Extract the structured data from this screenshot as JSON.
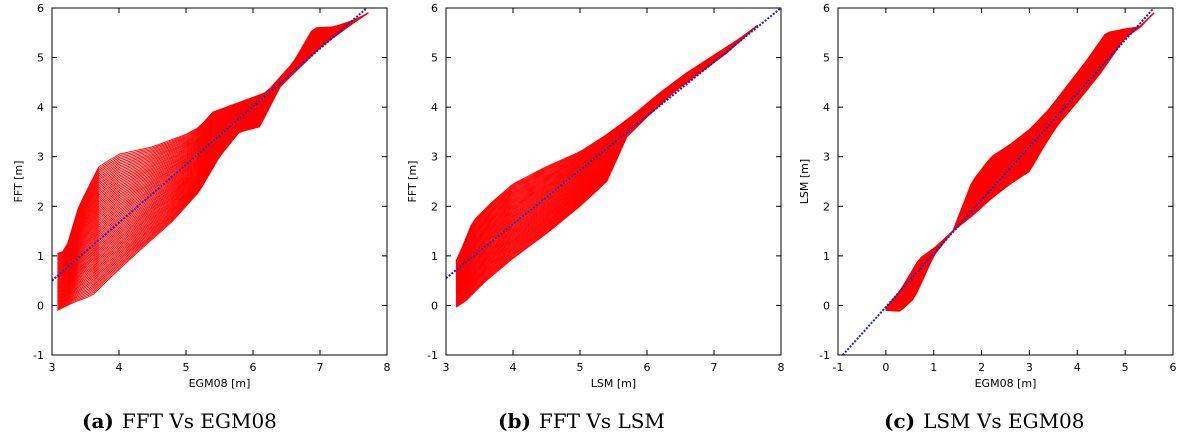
{
  "chart_data": [
    {
      "type": "scatter",
      "caption_letter": "(a)",
      "caption": "FFT Vs EGM08",
      "xlabel": "EGM08 [m]",
      "ylabel": "FFT [m]",
      "xlim": [
        3,
        8
      ],
      "ylim": [
        -1,
        6
      ],
      "xticks": [
        3,
        4,
        5,
        6,
        7,
        8
      ],
      "yticks": [
        -1,
        0,
        1,
        2,
        3,
        4,
        5,
        6
      ],
      "grid": false,
      "colors": {
        "scatter": "#ff0000",
        "fit": "#1f1fbf"
      },
      "lower_envelope": [
        [
          3.08,
          -0.1
        ],
        [
          3.3,
          0.05
        ],
        [
          3.6,
          0.2
        ],
        [
          3.9,
          0.6
        ],
        [
          4.3,
          1.1
        ],
        [
          4.8,
          1.7
        ],
        [
          5.2,
          2.3
        ],
        [
          5.5,
          3.0
        ],
        [
          5.8,
          3.5
        ],
        [
          6.1,
          3.6
        ],
        [
          6.4,
          4.4
        ],
        [
          7.0,
          5.2
        ],
        [
          7.5,
          5.7
        ],
        [
          7.72,
          5.9
        ]
      ],
      "upper_envelope": [
        [
          3.08,
          1.05
        ],
        [
          3.2,
          1.1
        ],
        [
          3.4,
          2.0
        ],
        [
          3.7,
          2.8
        ],
        [
          4.0,
          3.05
        ],
        [
          4.5,
          3.2
        ],
        [
          5.0,
          3.45
        ],
        [
          5.2,
          3.6
        ],
        [
          5.4,
          3.9
        ],
        [
          5.8,
          4.1
        ],
        [
          6.2,
          4.3
        ],
        [
          6.6,
          4.9
        ],
        [
          6.9,
          5.6
        ],
        [
          7.2,
          5.62
        ],
        [
          7.5,
          5.75
        ],
        [
          7.72,
          5.9
        ]
      ],
      "fit_line": {
        "x": [
          3.0,
          7.7
        ],
        "y": [
          0.5,
          6.0
        ]
      }
    },
    {
      "type": "scatter",
      "caption_letter": "(b)",
      "caption": "FFT Vs LSM",
      "xlabel": "LSM [m]",
      "ylabel": "FFT [m]",
      "xlim": [
        3,
        8
      ],
      "ylim": [
        -1,
        6
      ],
      "xticks": [
        3,
        4,
        5,
        6,
        7,
        8
      ],
      "yticks": [
        -1,
        0,
        1,
        2,
        3,
        4,
        5,
        6
      ],
      "grid": false,
      "colors": {
        "scatter": "#ff0000",
        "fit": "#1f1fbf"
      },
      "lower_envelope": [
        [
          3.08,
          -0.1
        ],
        [
          3.3,
          0.1
        ],
        [
          3.6,
          0.5
        ],
        [
          4.0,
          0.95
        ],
        [
          4.5,
          1.45
        ],
        [
          5.0,
          2.0
        ],
        [
          5.4,
          2.5
        ],
        [
          5.7,
          3.4
        ],
        [
          6.0,
          3.8
        ],
        [
          6.4,
          4.3
        ],
        [
          6.8,
          4.7
        ],
        [
          7.2,
          5.1
        ],
        [
          7.65,
          5.65
        ]
      ],
      "upper_envelope": [
        [
          3.15,
          0.9
        ],
        [
          3.25,
          1.2
        ],
        [
          3.4,
          1.7
        ],
        [
          3.7,
          2.1
        ],
        [
          4.0,
          2.45
        ],
        [
          4.5,
          2.8
        ],
        [
          5.0,
          3.1
        ],
        [
          5.4,
          3.45
        ],
        [
          5.8,
          3.85
        ],
        [
          6.2,
          4.3
        ],
        [
          6.6,
          4.7
        ],
        [
          7.0,
          5.05
        ],
        [
          7.4,
          5.4
        ],
        [
          7.65,
          5.65
        ]
      ],
      "fit_line": {
        "x": [
          3.0,
          8.0
        ],
        "y": [
          0.55,
          6.0
        ]
      }
    },
    {
      "type": "scatter",
      "caption_letter": "(c)",
      "caption": "LSM Vs EGM08",
      "xlabel": "EGM08 [m]",
      "ylabel": "LSM [m]",
      "xlim": [
        -1,
        6
      ],
      "ylim": [
        -1,
        6
      ],
      "xticks": [
        -1,
        0,
        1,
        2,
        3,
        4,
        5,
        6
      ],
      "yticks": [
        -1,
        0,
        1,
        2,
        3,
        4,
        5,
        6
      ],
      "grid": false,
      "colors": {
        "scatter": "#ff0000",
        "fit": "#1f1fbf"
      },
      "lower_envelope": [
        [
          0.0,
          -0.1
        ],
        [
          0.3,
          -0.12
        ],
        [
          0.6,
          0.15
        ],
        [
          1.0,
          1.0
        ],
        [
          1.4,
          1.5
        ],
        [
          1.8,
          1.8
        ],
        [
          2.2,
          2.15
        ],
        [
          2.6,
          2.45
        ],
        [
          3.0,
          2.7
        ],
        [
          3.3,
          3.2
        ],
        [
          3.6,
          3.65
        ],
        [
          4.0,
          4.1
        ],
        [
          4.5,
          4.7
        ],
        [
          5.0,
          5.4
        ],
        [
          5.3,
          5.6
        ],
        [
          5.6,
          5.9
        ]
      ],
      "upper_envelope": [
        [
          0.0,
          -0.05
        ],
        [
          0.3,
          0.3
        ],
        [
          0.7,
          0.95
        ],
        [
          1.0,
          1.15
        ],
        [
          1.4,
          1.5
        ],
        [
          1.8,
          2.5
        ],
        [
          2.2,
          3.0
        ],
        [
          2.6,
          3.25
        ],
        [
          3.0,
          3.55
        ],
        [
          3.4,
          3.95
        ],
        [
          3.8,
          4.45
        ],
        [
          4.2,
          4.95
        ],
        [
          4.6,
          5.5
        ],
        [
          5.0,
          5.58
        ],
        [
          5.3,
          5.62
        ],
        [
          5.6,
          5.9
        ]
      ],
      "fit_line": {
        "x": [
          -0.9,
          5.6
        ],
        "y": [
          -1.0,
          6.0
        ]
      }
    }
  ]
}
